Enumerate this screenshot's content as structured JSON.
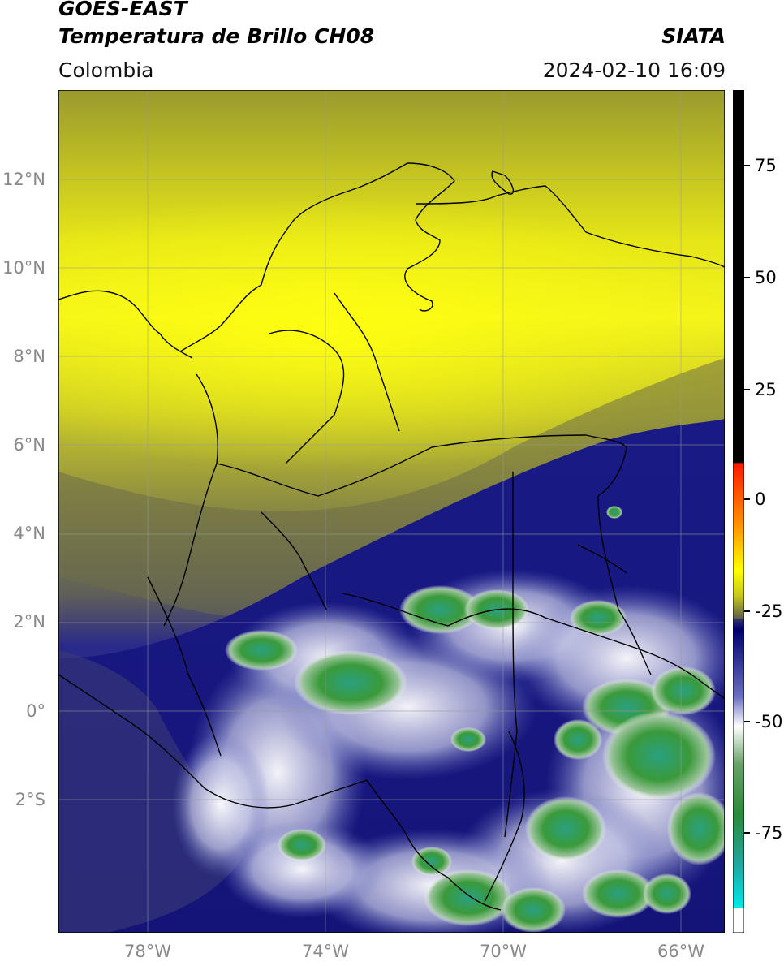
{
  "header": {
    "satellite": "GOES-EAST",
    "product": "Temperatura de Brillo CH08",
    "organization": "SIATA",
    "region": "Colombia",
    "datetime": "2024-02-10 16:09"
  },
  "map": {
    "lon_range": [
      -80,
      -65
    ],
    "lat_range": [
      -5,
      14
    ],
    "gridlines": true,
    "lat_labels": [
      "12°N",
      "10°N",
      "8°N",
      "6°N",
      "4°N",
      "2°N",
      "0°",
      "2°S"
    ],
    "lon_labels": [
      "78°W",
      "74°W",
      "70°W",
      "66°W"
    ],
    "lat_values": [
      12,
      10,
      8,
      6,
      4,
      2,
      0,
      -2
    ],
    "lon_values": [
      -78,
      -74,
      -70,
      -66
    ]
  },
  "colorbar": {
    "range": [
      -95,
      90
    ],
    "tick_labels": [
      "75",
      "50",
      "25",
      "0",
      "-25",
      "-50",
      "-75"
    ],
    "tick_values": [
      75,
      50,
      25,
      0,
      -25,
      -50,
      -75
    ],
    "colors": {
      "warm_black": "#000000",
      "red": "#ff1a00",
      "orange": "#ff9900",
      "yellow": "#ffff00",
      "olive": "#8a8a40",
      "dark_navy": "#00006e",
      "light_blue": "#b8bce0",
      "white": "#ffffff",
      "green": "#2d8a2d",
      "cyan": "#00e0e0"
    }
  }
}
